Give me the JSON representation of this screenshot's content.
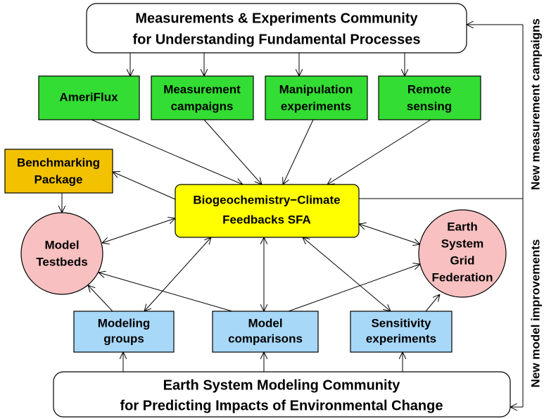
{
  "top_box": {
    "lines": [
      "Measurements & Experiments Community",
      "for Understanding Fundamental Processes"
    ]
  },
  "measurement_boxes": [
    {
      "lines": [
        "AmeriFlux"
      ]
    },
    {
      "lines": [
        "Measurement",
        "campaigns"
      ]
    },
    {
      "lines": [
        "Manipulation",
        "experiments"
      ]
    },
    {
      "lines": [
        "Remote",
        "sensing"
      ]
    }
  ],
  "benchmarking": {
    "lines": [
      "Benchmarking",
      "Package"
    ]
  },
  "center": {
    "lines": [
      "Biogeochemistry−Climate",
      "Feedbacks SFA"
    ]
  },
  "testbeds": {
    "lines": [
      "Model",
      "Testbeds"
    ]
  },
  "esgf": {
    "lines": [
      "Earth",
      "System",
      "Grid",
      "Federation"
    ]
  },
  "model_boxes": [
    {
      "lines": [
        "Modeling",
        "groups"
      ]
    },
    {
      "lines": [
        "Model",
        "comparisons"
      ]
    },
    {
      "lines": [
        "Sensitivity",
        "experiments"
      ]
    }
  ],
  "bottom_box": {
    "lines": [
      "Earth System Modeling Community",
      "for Predicting Impacts of Environmental Change"
    ]
  },
  "side_labels": [
    "New measurement campaigns",
    "New model improvements"
  ]
}
